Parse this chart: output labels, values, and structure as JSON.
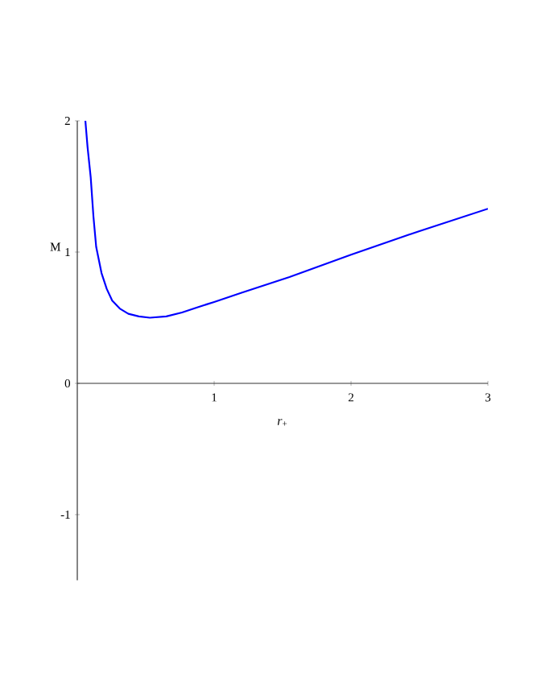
{
  "chart_data": {
    "type": "line",
    "xlabel": "*r*$_{+}$",
    "ylabel": "M",
    "xlim": [
      0,
      3
    ],
    "ylim": [
      -1.5,
      2
    ],
    "xticks": [
      1,
      2,
      3
    ],
    "yticks": [
      -1,
      0,
      1,
      2
    ],
    "grid": false,
    "marker": "none",
    "line_style": "solid",
    "series": [
      {
        "color": "#0000ff",
        "x": [
          0.059,
          0.075,
          0.098,
          0.118,
          0.138,
          0.177,
          0.215,
          0.255,
          0.31,
          0.373,
          0.45,
          0.53,
          0.65,
          0.765,
          0.88,
          1.0,
          1.2,
          1.55,
          2.0,
          2.5,
          3.0
        ],
        "values": [
          2.0,
          1.8,
          1.57,
          1.27,
          1.04,
          0.84,
          0.72,
          0.63,
          0.57,
          0.53,
          0.51,
          0.5,
          0.51,
          0.54,
          0.58,
          0.62,
          0.69,
          0.81,
          0.98,
          1.16,
          1.33
        ]
      }
    ]
  }
}
